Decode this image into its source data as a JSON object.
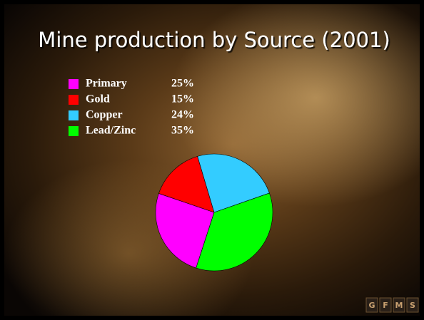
{
  "chart_data": {
    "type": "pie",
    "title": "Mine production by Source (2001)",
    "categories": [
      "Primary",
      "Gold",
      "Copper",
      "Lead/Zinc"
    ],
    "values": [
      25,
      15,
      24,
      35
    ],
    "value_labels": [
      "25%",
      "15%",
      "24%",
      "35%"
    ],
    "colors": [
      "#ff00ff",
      "#ff0000",
      "#33ccff",
      "#00ff00"
    ],
    "legend": "top-left"
  },
  "logo": [
    "G",
    "F",
    "M",
    "S"
  ]
}
